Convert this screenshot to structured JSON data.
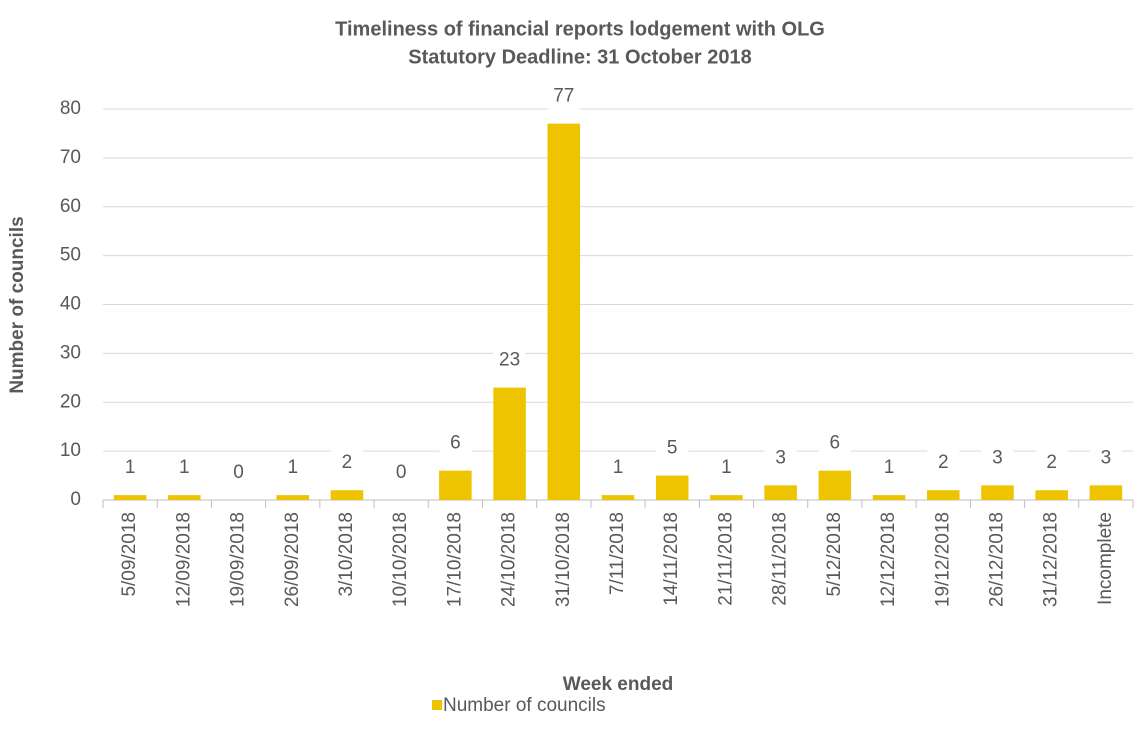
{
  "chart_data": {
    "type": "bar",
    "title": "Timeliness of financial reports lodgement with OLG",
    "subtitle": "Statutory Deadline: 31 October 2018",
    "x_label": "Week ended",
    "y_label": "Number of councils",
    "categories": [
      "5/09/2018",
      "12/09/2018",
      "19/09/2018",
      "26/09/2018",
      "3/10/2018",
      "10/10/2018",
      "17/10/2018",
      "24/10/2018",
      "31/10/2018",
      "7/11/2018",
      "14/11/2018",
      "21/11/2018",
      "28/11/2018",
      "5/12/2018",
      "12/12/2018",
      "19/12/2018",
      "26/12/2018",
      "31/12/2018",
      "Incomplete"
    ],
    "series": [
      {
        "name": "Number of councils",
        "color": "#eec300",
        "values": [
          1,
          1,
          0,
          1,
          2,
          0,
          6,
          23,
          77,
          1,
          5,
          1,
          3,
          6,
          1,
          2,
          3,
          2,
          3
        ]
      }
    ],
    "ylim": [
      0,
      80
    ],
    "yticks": [
      0,
      10,
      20,
      30,
      40,
      50,
      60,
      70,
      80
    ],
    "grid": true,
    "legend": "bottom"
  }
}
